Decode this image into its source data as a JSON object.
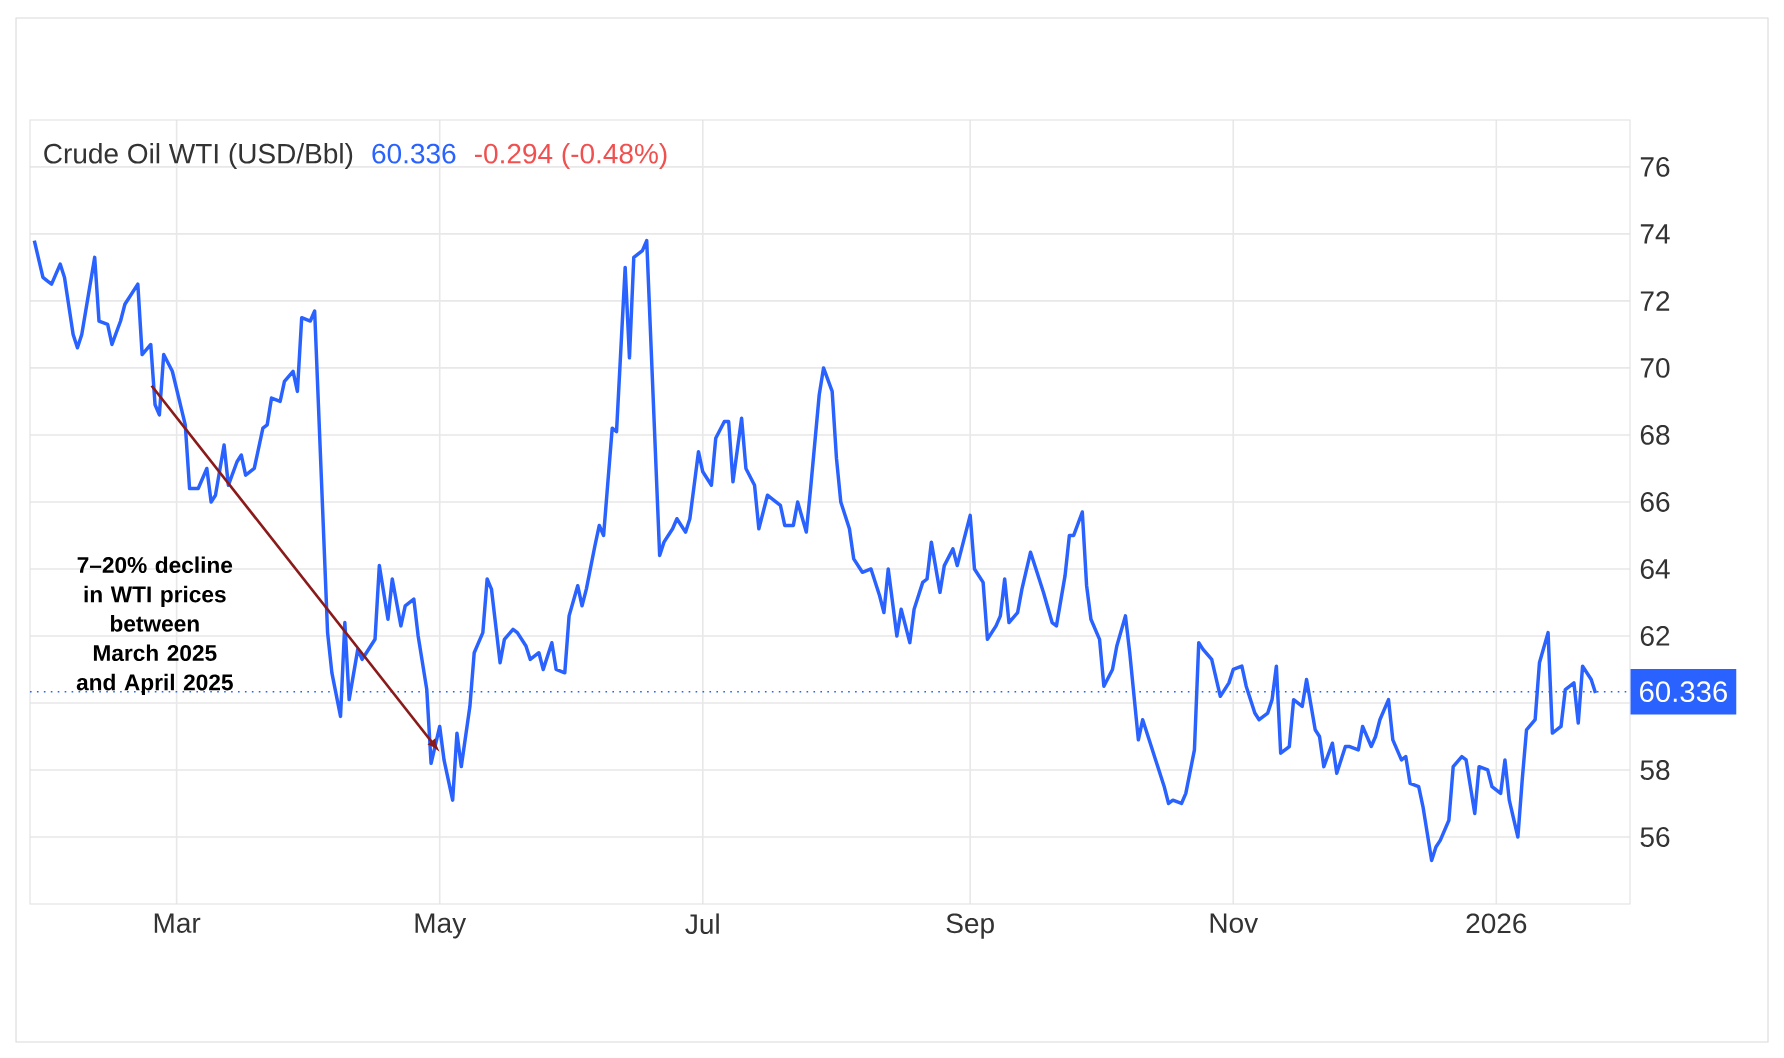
{
  "chart_data": {
    "type": "line",
    "title": "Crude Oil WTI (USD/Bbl)",
    "color": "#2962ff",
    "grid": true,
    "annotations": [
      "60.336",
      "-0.294 (-0.48%)",
      "7–20% decline in WTI prices between March 2025 and April 2025"
    ],
    "ref_lines": [
      {
        "axis": "y",
        "value": 60.336,
        "label": "60.336",
        "color": "#2962ff",
        "line_style": "dotted"
      }
    ],
    "xlim": [
      "2025-01-26",
      "2026-02-01"
    ],
    "xticks": [
      {
        "value": "2025-03-01",
        "label": "Mar"
      },
      {
        "value": "2025-05-01",
        "label": "May"
      },
      {
        "value": "2025-07-01",
        "label": "Jul"
      },
      {
        "value": "2025-09-01",
        "label": "Sep"
      },
      {
        "value": "2025-11-01",
        "label": "Nov"
      },
      {
        "value": "2026-01-01",
        "label": "2026"
      }
    ],
    "ylim": [
      54,
      77.4
    ],
    "yticks": [
      56,
      58,
      {
        "value": 60,
        "label": null
      },
      62,
      64,
      66,
      68,
      70,
      72,
      74,
      76
    ],
    "x": [
      "2025-01-27",
      "2025-01-29",
      "2025-01-30",
      "2025-01-31",
      "2025-02-02",
      "2025-02-03",
      "2025-02-05",
      "2025-02-06",
      "2025-02-07",
      "2025-02-10",
      "2025-02-11",
      "2025-02-13",
      "2025-02-14",
      "2025-02-16",
      "2025-02-17",
      "2025-02-20",
      "2025-02-21",
      "2025-02-23",
      "2025-02-24",
      "2025-02-25",
      "2025-02-26",
      "2025-02-28",
      "2025-03-03",
      "2025-03-04",
      "2025-03-06",
      "2025-03-08",
      "2025-03-09",
      "2025-03-10",
      "2025-03-12",
      "2025-03-13",
      "2025-03-15",
      "2025-03-16",
      "2025-03-17",
      "2025-03-19",
      "2025-03-21",
      "2025-03-22",
      "2025-03-23",
      "2025-03-25",
      "2025-03-26",
      "2025-03-28",
      "2025-03-29",
      "2025-03-30",
      "2025-04-01",
      "2025-04-02",
      "2025-04-05",
      "2025-04-06",
      "2025-04-08",
      "2025-04-09",
      "2025-04-10",
      "2025-04-12",
      "2025-04-13",
      "2025-04-14",
      "2025-04-16",
      "2025-04-17",
      "2025-04-19",
      "2025-04-20",
      "2025-04-22",
      "2025-04-23",
      "2025-04-25",
      "2025-04-26",
      "2025-04-28",
      "2025-04-29",
      "2025-05-01",
      "2025-05-02",
      "2025-05-04",
      "2025-05-05",
      "2025-05-06",
      "2025-05-08",
      "2025-05-09",
      "2025-05-11",
      "2025-05-12",
      "2025-05-13",
      "2025-05-15",
      "2025-05-16",
      "2025-05-18",
      "2025-05-19",
      "2025-05-21",
      "2025-05-22",
      "2025-05-24",
      "2025-05-25",
      "2025-05-27",
      "2025-05-28",
      "2025-05-30",
      "2025-05-31",
      "2025-06-02",
      "2025-06-03",
      "2025-06-04",
      "2025-06-06",
      "2025-06-07",
      "2025-06-08",
      "2025-06-10",
      "2025-06-11",
      "2025-06-13",
      "2025-06-14",
      "2025-06-15",
      "2025-06-17",
      "2025-06-18",
      "2025-06-21",
      "2025-06-22",
      "2025-06-24",
      "2025-06-25",
      "2025-06-27",
      "2025-06-28",
      "2025-06-30",
      "2025-07-01",
      "2025-07-03",
      "2025-07-04",
      "2025-07-06",
      "2025-07-07",
      "2025-07-08",
      "2025-07-10",
      "2025-07-11",
      "2025-07-13",
      "2025-07-14",
      "2025-07-16",
      "2025-07-17",
      "2025-07-19",
      "2025-07-20",
      "2025-07-22",
      "2025-07-23",
      "2025-07-25",
      "2025-07-26",
      "2025-07-28",
      "2025-07-29",
      "2025-07-31",
      "2025-08-01",
      "2025-08-02",
      "2025-08-04",
      "2025-08-05",
      "2025-08-07",
      "2025-08-09",
      "2025-08-11",
      "2025-08-12",
      "2025-08-13",
      "2025-08-15",
      "2025-08-16",
      "2025-08-18",
      "2025-08-19",
      "2025-08-21",
      "2025-08-22",
      "2025-08-23",
      "2025-08-25",
      "2025-08-26",
      "2025-08-28",
      "2025-08-29",
      "2025-08-30",
      "2025-09-01",
      "2025-09-02",
      "2025-09-04",
      "2025-09-05",
      "2025-09-07",
      "2025-09-08",
      "2025-09-09",
      "2025-09-10",
      "2025-09-12",
      "2025-09-13",
      "2025-09-15",
      "2025-09-17",
      "2025-09-18",
      "2025-09-20",
      "2025-09-21",
      "2025-09-23",
      "2025-09-24",
      "2025-09-25",
      "2025-09-27",
      "2025-09-28",
      "2025-09-29",
      "2025-10-01",
      "2025-10-02",
      "2025-10-04",
      "2025-10-05",
      "2025-10-07",
      "2025-10-08",
      "2025-10-10",
      "2025-10-11",
      "2025-10-13",
      "2025-10-14",
      "2025-10-16",
      "2025-10-17",
      "2025-10-18",
      "2025-10-20",
      "2025-10-21",
      "2025-10-23",
      "2025-10-24",
      "2025-10-25",
      "2025-10-27",
      "2025-10-29",
      "2025-10-30",
      "2025-10-31",
      "2025-11-01",
      "2025-11-03",
      "2025-11-04",
      "2025-11-06",
      "2025-11-07",
      "2025-11-09",
      "2025-11-10",
      "2025-11-11",
      "2025-11-12",
      "2025-11-14",
      "2025-11-15",
      "2025-11-17",
      "2025-11-18",
      "2025-11-20",
      "2025-11-21",
      "2025-11-22",
      "2025-11-24",
      "2025-11-25",
      "2025-11-27",
      "2025-11-28",
      "2025-11-30",
      "2025-12-01",
      "2025-12-03",
      "2025-12-04",
      "2025-12-05",
      "2025-12-07",
      "2025-12-08",
      "2025-12-10",
      "2025-12-11",
      "2025-12-12",
      "2025-12-14",
      "2025-12-15",
      "2025-12-17",
      "2025-12-18",
      "2025-12-19",
      "2025-12-21",
      "2025-12-22",
      "2025-12-24",
      "2025-12-25",
      "2025-12-27",
      "2025-12-28",
      "2025-12-30",
      "2025-12-31",
      "2026-01-02",
      "2026-01-03",
      "2026-01-04",
      "2026-01-06",
      "2026-01-07",
      "2026-01-08",
      "2026-01-10",
      "2026-01-11",
      "2026-01-13",
      "2026-01-14",
      "2026-01-16",
      "2026-01-17",
      "2026-01-19",
      "2026-01-20",
      "2026-01-21",
      "2026-01-23",
      "2026-01-24"
    ],
    "values": [
      73.8,
      72.7,
      72.6,
      72.5,
      73.1,
      72.7,
      71.0,
      70.6,
      71.0,
      73.3,
      71.4,
      71.3,
      70.7,
      71.4,
      71.9,
      72.5,
      70.4,
      70.7,
      68.9,
      68.6,
      70.4,
      69.9,
      68.3,
      66.4,
      66.4,
      67.0,
      66.0,
      66.2,
      67.7,
      66.5,
      67.2,
      67.4,
      66.8,
      67.0,
      68.2,
      68.3,
      69.1,
      69.0,
      69.6,
      69.9,
      69.3,
      71.5,
      71.4,
      71.7,
      62.1,
      60.9,
      59.6,
      62.4,
      60.1,
      61.6,
      61.3,
      61.5,
      61.9,
      64.1,
      62.5,
      63.7,
      62.3,
      62.9,
      63.1,
      62.0,
      60.4,
      58.2,
      59.3,
      58.3,
      57.1,
      59.1,
      58.1,
      59.9,
      61.5,
      62.1,
      63.7,
      63.4,
      61.2,
      61.9,
      62.2,
      62.1,
      61.7,
      61.3,
      61.5,
      61.0,
      61.8,
      61.0,
      60.9,
      62.6,
      63.5,
      62.9,
      63.4,
      64.7,
      65.3,
      65.0,
      68.2,
      68.1,
      73.0,
      70.3,
      73.3,
      73.5,
      73.8,
      64.4,
      64.8,
      65.2,
      65.5,
      65.1,
      65.5,
      67.5,
      66.9,
      66.5,
      67.9,
      68.4,
      68.4,
      66.6,
      68.5,
      67.0,
      66.5,
      65.2,
      66.2,
      66.1,
      65.9,
      65.3,
      65.3,
      66.0,
      65.1,
      66.4,
      69.2,
      70.0,
      69.3,
      67.3,
      66.0,
      65.2,
      64.3,
      63.9,
      64.0,
      63.2,
      62.7,
      64.0,
      62.0,
      62.8,
      61.8,
      62.8,
      63.6,
      63.7,
      64.8,
      63.3,
      64.1,
      64.6,
      64.1,
      64.6,
      65.6,
      64.0,
      63.6,
      61.9,
      62.3,
      62.6,
      63.7,
      62.4,
      62.7,
      63.4,
      64.5,
      63.7,
      63.3,
      62.4,
      62.3,
      63.8,
      65.0,
      65.0,
      65.7,
      63.5,
      62.5,
      61.9,
      60.5,
      61.0,
      61.7,
      62.6,
      61.5,
      58.9,
      59.5,
      58.7,
      58.3,
      57.5,
      57.0,
      57.1,
      57.0,
      57.3,
      58.6,
      61.8,
      61.6,
      61.3,
      60.2,
      60.4,
      60.6,
      61.0,
      61.1,
      60.5,
      59.7,
      59.5,
      59.7,
      60.1,
      61.1,
      58.5,
      58.7,
      60.1,
      59.9,
      60.7,
      59.2,
      59.0,
      58.1,
      58.8,
      57.9,
      58.7,
      58.7,
      58.6,
      59.3,
      58.7,
      59.0,
      59.5,
      60.1,
      58.9,
      58.3,
      58.4,
      57.6,
      57.5,
      56.9,
      55.3,
      55.7,
      55.9,
      56.5,
      58.1,
      58.4,
      58.3,
      56.7,
      58.1,
      58.0,
      57.5,
      57.3,
      58.3,
      57.1,
      56.0,
      57.7,
      59.2,
      59.5,
      61.2,
      62.1,
      59.1,
      59.3,
      60.4,
      60.6,
      59.4,
      61.1,
      60.7,
      60.3
    ]
  }
}
